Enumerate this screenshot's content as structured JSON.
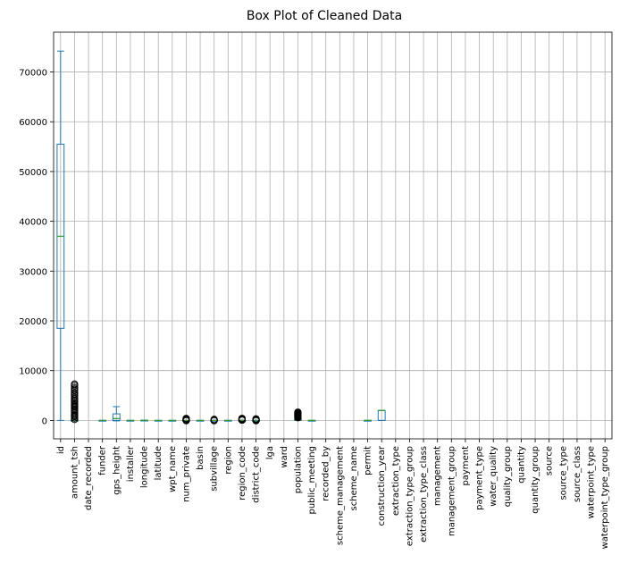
{
  "chart_data": {
    "type": "box",
    "title": "Box Plot of Cleaned Data",
    "xlabel": "",
    "ylabel": "",
    "ylim": [
      -3700,
      78000
    ],
    "yticks": [
      0,
      10000,
      20000,
      30000,
      40000,
      50000,
      60000,
      70000
    ],
    "grid": true,
    "colors": {
      "box": "#1f77b4",
      "median": "#2ca02c",
      "flier": "#000000",
      "grid": "#b0b0b0"
    },
    "categories": [
      "id",
      "amount_tsh",
      "date_recorded",
      "funder",
      "gps_height",
      "installer",
      "longitude",
      "latitude",
      "wpt_name",
      "num_private",
      "basin",
      "subvillage",
      "region",
      "region_code",
      "district_code",
      "lga",
      "ward",
      "population",
      "public_meeting",
      "recorded_by",
      "scheme_management",
      "scheme_name",
      "permit",
      "construction_year",
      "extraction_type",
      "extraction_type_group",
      "extraction_type_class",
      "management",
      "management_group",
      "payment",
      "payment_type",
      "water_quality",
      "quality_group",
      "quantity",
      "quantity_group",
      "source",
      "source_type",
      "source_class",
      "waterpoint_type",
      "waterpoint_type_group"
    ],
    "boxes": [
      {
        "category": "id",
        "min": 0,
        "q1": 18500,
        "median": 37000,
        "q3": 55500,
        "max": 74200,
        "fliers": []
      },
      {
        "category": "amount_tsh",
        "min": 0,
        "q1": 0,
        "median": 0,
        "q3": 20,
        "max": 50,
        "fliers": [
          200,
          500,
          800,
          1000,
          1200,
          1500,
          1800,
          2000,
          2200,
          2500,
          2800,
          3000,
          3200,
          3500,
          3800,
          4000,
          4300,
          4600,
          5000,
          5300,
          5600,
          6000,
          6300,
          6600,
          7000,
          7300
        ]
      },
      {
        "category": "date_recorded",
        "min": null,
        "q1": null,
        "median": null,
        "q3": null,
        "max": null,
        "fliers": []
      },
      {
        "category": "funder",
        "min": 0,
        "q1": 0,
        "median": 0,
        "q3": 0,
        "max": 0,
        "fliers": []
      },
      {
        "category": "gps_height",
        "min": -90,
        "q1": 0,
        "median": 370,
        "q3": 1320,
        "max": 2770,
        "fliers": []
      },
      {
        "category": "installer",
        "min": 0,
        "q1": 0,
        "median": 0,
        "q3": 0,
        "max": 0,
        "fliers": []
      },
      {
        "category": "longitude",
        "min": 29,
        "q1": 33,
        "median": 35,
        "q3": 37,
        "max": 40,
        "fliers": []
      },
      {
        "category": "latitude",
        "min": -11,
        "q1": -8,
        "median": -5,
        "q3": -3,
        "max": 0,
        "fliers": []
      },
      {
        "category": "wpt_name",
        "min": 0,
        "q1": 0,
        "median": 0,
        "q3": 0,
        "max": 0,
        "fliers": []
      },
      {
        "category": "num_private",
        "min": 0,
        "q1": 0,
        "median": 0,
        "q3": 0,
        "max": 0,
        "fliers": [
          -50,
          50,
          100,
          150,
          200,
          250,
          300,
          400
        ]
      },
      {
        "category": "basin",
        "min": 0,
        "q1": 0,
        "median": 0,
        "q3": 0,
        "max": 0,
        "fliers": []
      },
      {
        "category": "subvillage",
        "min": 0,
        "q1": 0,
        "median": 0,
        "q3": 0,
        "max": 0,
        "fliers": [
          -50,
          50,
          100,
          200
        ]
      },
      {
        "category": "region",
        "min": 0,
        "q1": 0,
        "median": 0,
        "q3": 0,
        "max": 0,
        "fliers": []
      },
      {
        "category": "region_code",
        "min": 1,
        "q1": 5,
        "median": 12,
        "q3": 17,
        "max": 30,
        "fliers": [
          60,
          80,
          90,
          99,
          150,
          200,
          250,
          300,
          350,
          400
        ]
      },
      {
        "category": "district_code",
        "min": 0,
        "q1": 2,
        "median": 3,
        "q3": 5,
        "max": 8,
        "fliers": [
          -50,
          30,
          60,
          80,
          100,
          150,
          200,
          250,
          300
        ]
      },
      {
        "category": "lga",
        "min": null,
        "q1": null,
        "median": null,
        "q3": null,
        "max": null,
        "fliers": []
      },
      {
        "category": "ward",
        "min": null,
        "q1": null,
        "median": null,
        "q3": null,
        "max": null,
        "fliers": []
      },
      {
        "category": "population",
        "min": 0,
        "q1": 0,
        "median": 25,
        "q3": 215,
        "max": 500,
        "fliers": [
          550,
          650,
          750,
          850,
          950,
          1050,
          1150,
          1250,
          1350,
          1450,
          1550,
          1650
        ]
      },
      {
        "category": "public_meeting",
        "min": 0,
        "q1": 0,
        "median": 1,
        "q3": 1,
        "max": 1,
        "fliers": []
      },
      {
        "category": "recorded_by",
        "min": null,
        "q1": null,
        "median": null,
        "q3": null,
        "max": null,
        "fliers": []
      },
      {
        "category": "scheme_management",
        "min": null,
        "q1": null,
        "median": null,
        "q3": null,
        "max": null,
        "fliers": []
      },
      {
        "category": "scheme_name",
        "min": null,
        "q1": null,
        "median": null,
        "q3": null,
        "max": null,
        "fliers": []
      },
      {
        "category": "permit",
        "min": 0,
        "q1": 0,
        "median": 1,
        "q3": 1,
        "max": 1,
        "fliers": []
      },
      {
        "category": "construction_year",
        "min": 0,
        "q1": 0,
        "median": 1986,
        "q3": 2004,
        "max": 2013,
        "fliers": []
      },
      {
        "category": "extraction_type",
        "min": null,
        "q1": null,
        "median": null,
        "q3": null,
        "max": null,
        "fliers": []
      },
      {
        "category": "extraction_type_group",
        "min": null,
        "q1": null,
        "median": null,
        "q3": null,
        "max": null,
        "fliers": []
      },
      {
        "category": "extraction_type_class",
        "min": null,
        "q1": null,
        "median": null,
        "q3": null,
        "max": null,
        "fliers": []
      },
      {
        "category": "management",
        "min": null,
        "q1": null,
        "median": null,
        "q3": null,
        "max": null,
        "fliers": []
      },
      {
        "category": "management_group",
        "min": null,
        "q1": null,
        "median": null,
        "q3": null,
        "max": null,
        "fliers": []
      },
      {
        "category": "payment",
        "min": null,
        "q1": null,
        "median": null,
        "q3": null,
        "max": null,
        "fliers": []
      },
      {
        "category": "payment_type",
        "min": null,
        "q1": null,
        "median": null,
        "q3": null,
        "max": null,
        "fliers": []
      },
      {
        "category": "water_quality",
        "min": null,
        "q1": null,
        "median": null,
        "q3": null,
        "max": null,
        "fliers": []
      },
      {
        "category": "quality_group",
        "min": null,
        "q1": null,
        "median": null,
        "q3": null,
        "max": null,
        "fliers": []
      },
      {
        "category": "quantity",
        "min": null,
        "q1": null,
        "median": null,
        "q3": null,
        "max": null,
        "fliers": []
      },
      {
        "category": "quantity_group",
        "min": null,
        "q1": null,
        "median": null,
        "q3": null,
        "max": null,
        "fliers": []
      },
      {
        "category": "source",
        "min": null,
        "q1": null,
        "median": null,
        "q3": null,
        "max": null,
        "fliers": []
      },
      {
        "category": "source_type",
        "min": null,
        "q1": null,
        "median": null,
        "q3": null,
        "max": null,
        "fliers": []
      },
      {
        "category": "source_class",
        "min": null,
        "q1": null,
        "median": null,
        "q3": null,
        "max": null,
        "fliers": []
      },
      {
        "category": "waterpoint_type",
        "min": null,
        "q1": null,
        "median": null,
        "q3": null,
        "max": null,
        "fliers": []
      },
      {
        "category": "waterpoint_type_group",
        "min": null,
        "q1": null,
        "median": null,
        "q3": null,
        "max": null,
        "fliers": []
      }
    ]
  }
}
